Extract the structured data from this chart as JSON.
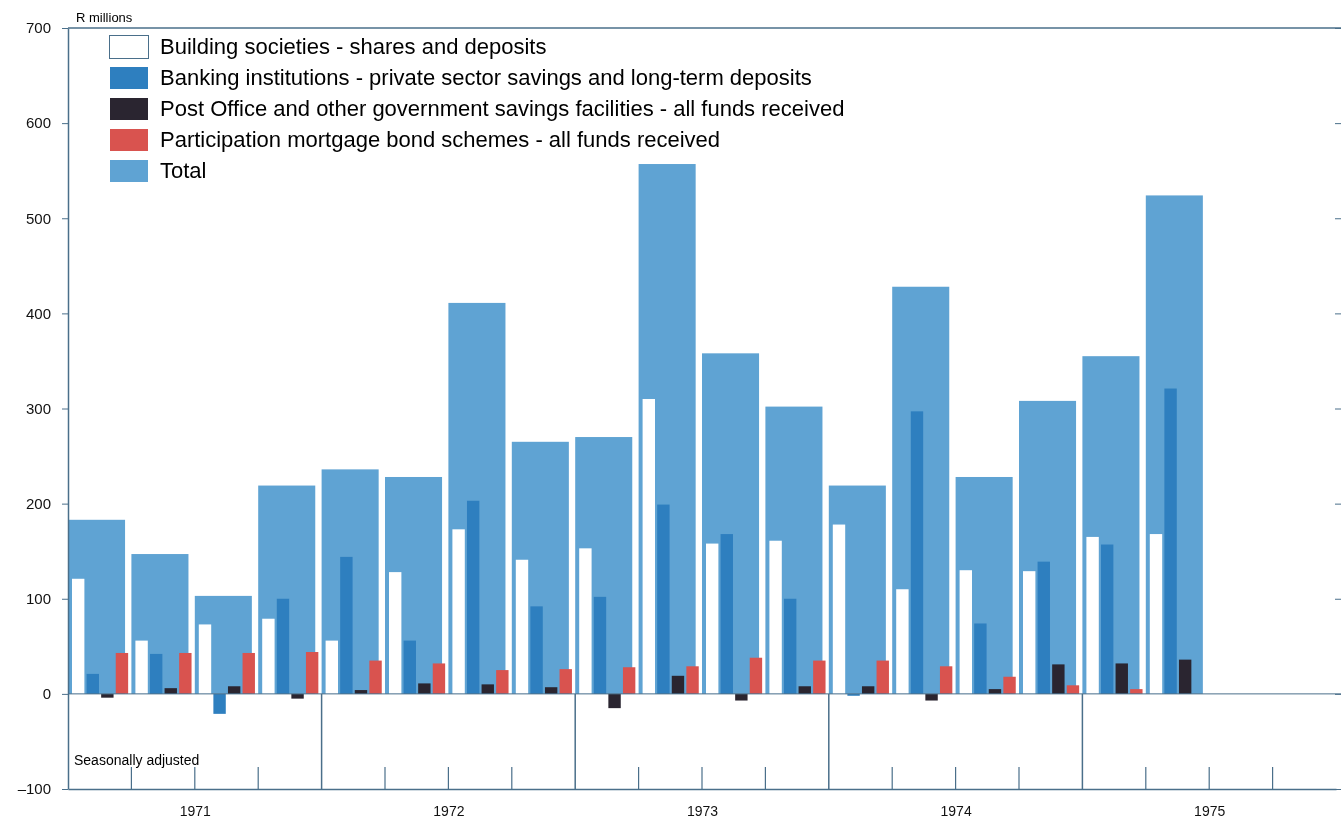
{
  "chart_data": {
    "type": "bar",
    "ylabel": "R millions",
    "x": [
      1971.125,
      1971.375,
      1971.625,
      1971.875,
      1972.125,
      1972.375,
      1972.625,
      1972.875,
      1973.125,
      1973.375,
      1973.625,
      1973.875,
      1974.125,
      1974.375,
      1974.625,
      1974.875,
      1975.125,
      1975.375
    ],
    "series": [
      {
        "name": "Building societies - shares and deposits",
        "color": "#ffffff",
        "values": [
          121,
          56,
          73,
          79,
          56,
          128,
          173,
          141,
          153,
          310,
          158,
          161,
          178,
          110,
          130,
          129,
          165,
          168
        ]
      },
      {
        "name": "Banking institutions - private sector savings and long-term deposits",
        "color": "#2e7fbf",
        "values": [
          21,
          42,
          -21,
          100,
          144,
          56,
          203,
          92,
          102,
          199,
          168,
          100,
          -2,
          297,
          74,
          139,
          157,
          321
        ]
      },
      {
        "name": "Post Office and other government savings facilities - all funds received",
        "color": "#2a2530",
        "values": [
          -4,
          6,
          8,
          -5,
          4,
          11,
          10,
          7,
          -15,
          19,
          -7,
          8,
          8,
          -7,
          5,
          31,
          32,
          36
        ]
      },
      {
        "name": "Participation mortgage bond schemes - all funds received",
        "color": "#d9534f",
        "values": [
          43,
          43,
          43,
          44,
          35,
          32,
          25,
          26,
          28,
          29,
          38,
          35,
          35,
          29,
          18,
          9,
          5,
          null
        ]
      },
      {
        "name": "Total",
        "color": "#5fa3d3",
        "values": [
          183,
          147,
          103,
          219,
          236,
          228,
          411,
          265,
          270,
          557,
          358,
          302,
          219,
          428,
          228,
          308,
          355,
          524
        ]
      }
    ],
    "xlim": [
      1971,
      1976
    ],
    "xticks": [
      {
        "value": 1971.5,
        "label": "1971"
      },
      {
        "value": 1972.5,
        "label": "1972"
      },
      {
        "value": 1973.5,
        "label": "1973"
      },
      {
        "value": 1974.5,
        "label": "1974"
      },
      {
        "value": 1975.5,
        "label": "1975"
      }
    ],
    "ylim": [
      -100,
      700
    ],
    "yticks": [
      {
        "value": -100,
        "label": "–100"
      },
      0,
      100,
      200,
      300,
      400,
      500,
      600,
      700
    ],
    "legend": "top left",
    "ref_lines": [
      {
        "axis": "y",
        "value": 0
      }
    ],
    "annotations": [
      "Seasonally adjusted"
    ]
  }
}
